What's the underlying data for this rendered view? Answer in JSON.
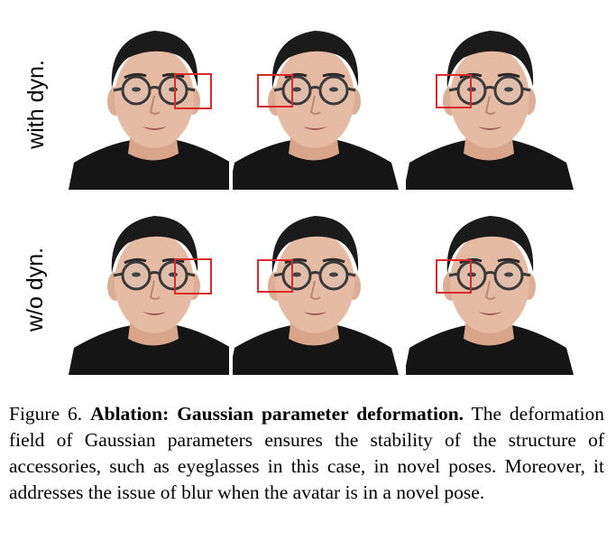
{
  "figure": {
    "rows": [
      {
        "label": "with dyn."
      },
      {
        "label": "w/o dyn."
      }
    ],
    "highlight_color": "#d92b2b",
    "caption": {
      "number": "Figure 6.",
      "title": "Ablation: Gaussian parameter deformation.",
      "body": "The deformation field of Gaussian parameters ensures the stability of the structure of accessories, such as eyeglasses in this case, in novel poses. Moreover, it addresses the issue of blur when the avatar is in a novel pose."
    }
  }
}
